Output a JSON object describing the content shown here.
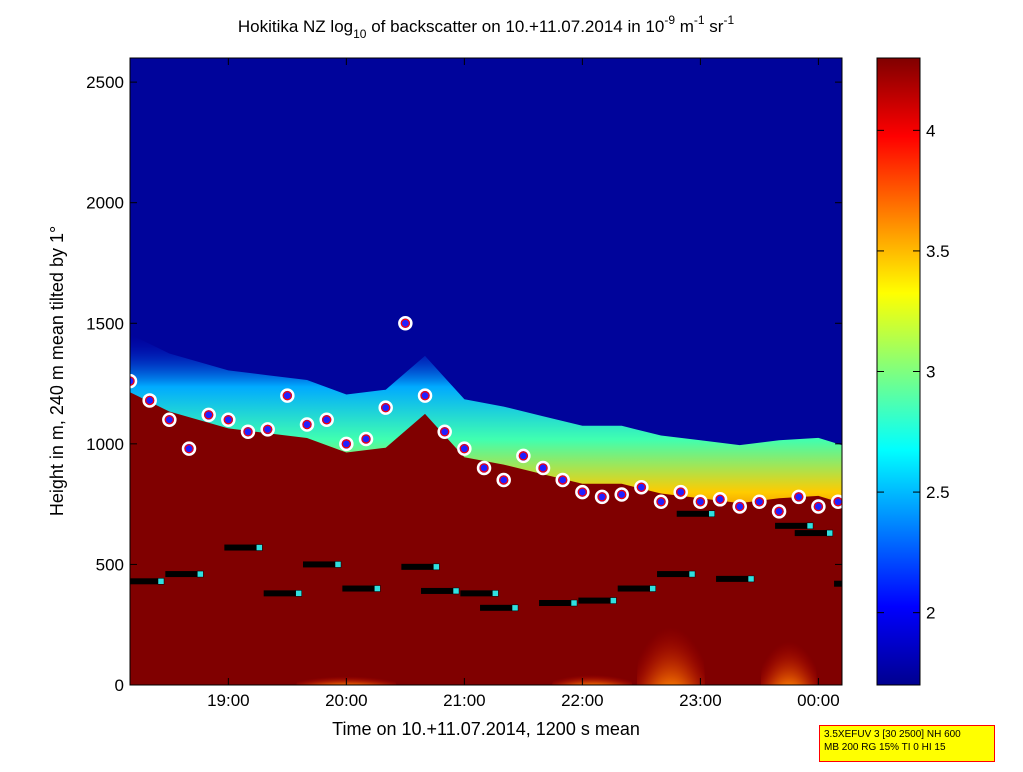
{
  "chart_data": {
    "type": "heatmap",
    "title": {
      "prefix": "Hokitika NZ log",
      "sub": "10",
      "mid": " of backscatter on 10.+11.07.2014 in 10",
      "exp1": "-9",
      "m": " m",
      "exp2": "-1",
      "sr": " sr",
      "exp3": "-1"
    },
    "xlabel": "Time on 10.+11.07.2014, 1200 s mean",
    "ylabel": "Height in m, 240 m mean tilted by 1°",
    "xlim": [
      "18:10",
      "00:12"
    ],
    "ylim": [
      0,
      2600
    ],
    "x_ticks": [
      "19:00",
      "20:00",
      "21:00",
      "22:00",
      "23:00",
      "00:00"
    ],
    "y_ticks": [
      0,
      500,
      1000,
      1500,
      2000,
      2500
    ],
    "colorbar": {
      "range": [
        1.7,
        4.3
      ],
      "ticks": [
        2,
        2.5,
        3,
        3.5,
        4
      ],
      "colormap": "jet"
    },
    "background_color": "#00008f",
    "saturated_color": "#800000",
    "aerosol_top": {
      "time": [
        "18:10",
        "18:30",
        "19:00",
        "19:20",
        "19:40",
        "20:00",
        "20:20",
        "20:40",
        "21:00",
        "21:20",
        "21:40",
        "22:00",
        "22:20",
        "22:40",
        "23:00",
        "23:20",
        "23:40",
        "00:00",
        "00:12"
      ],
      "height_m": [
        1380,
        1300,
        1230,
        1210,
        1190,
        1130,
        1150,
        1290,
        1110,
        1080,
        1040,
        1000,
        1000,
        960,
        940,
        920,
        940,
        950,
        920
      ]
    },
    "cloud_base_markers": [
      {
        "time": "18:10",
        "height_m": 430
      },
      {
        "time": "18:30",
        "height_m": 460
      },
      {
        "time": "19:00",
        "height_m": 570
      },
      {
        "time": "19:20",
        "height_m": 380
      },
      {
        "time": "19:40",
        "height_m": 500
      },
      {
        "time": "20:00",
        "height_m": 400
      },
      {
        "time": "20:30",
        "height_m": 490
      },
      {
        "time": "20:40",
        "height_m": 390
      },
      {
        "time": "21:00",
        "height_m": 380
      },
      {
        "time": "21:10",
        "height_m": 320
      },
      {
        "time": "21:40",
        "height_m": 340
      },
      {
        "time": "22:00",
        "height_m": 350
      },
      {
        "time": "22:20",
        "height_m": 400
      },
      {
        "time": "22:40",
        "height_m": 460
      },
      {
        "time": "22:50",
        "height_m": 710
      },
      {
        "time": "23:10",
        "height_m": 440
      },
      {
        "time": "23:40",
        "height_m": 660
      },
      {
        "time": "23:50",
        "height_m": 630
      },
      {
        "time": "00:10",
        "height_m": 420
      }
    ],
    "aerosol_layer_points": [
      {
        "time": "18:10",
        "height_m": 1260
      },
      {
        "time": "18:20",
        "height_m": 1180
      },
      {
        "time": "18:30",
        "height_m": 1100
      },
      {
        "time": "18:40",
        "height_m": 980
      },
      {
        "time": "18:50",
        "height_m": 1120
      },
      {
        "time": "19:00",
        "height_m": 1100
      },
      {
        "time": "19:10",
        "height_m": 1050
      },
      {
        "time": "19:20",
        "height_m": 1060
      },
      {
        "time": "19:30",
        "height_m": 1200
      },
      {
        "time": "19:40",
        "height_m": 1080
      },
      {
        "time": "19:50",
        "height_m": 1100
      },
      {
        "time": "20:00",
        "height_m": 1000
      },
      {
        "time": "20:10",
        "height_m": 1020
      },
      {
        "time": "20:20",
        "height_m": 1150
      },
      {
        "time": "20:30",
        "height_m": 1500
      },
      {
        "time": "20:40",
        "height_m": 1200
      },
      {
        "time": "20:50",
        "height_m": 1050
      },
      {
        "time": "21:00",
        "height_m": 980
      },
      {
        "time": "21:10",
        "height_m": 900
      },
      {
        "time": "21:20",
        "height_m": 850
      },
      {
        "time": "21:30",
        "height_m": 950
      },
      {
        "time": "21:40",
        "height_m": 900
      },
      {
        "time": "21:50",
        "height_m": 850
      },
      {
        "time": "22:00",
        "height_m": 800
      },
      {
        "time": "22:10",
        "height_m": 780
      },
      {
        "time": "22:20",
        "height_m": 790
      },
      {
        "time": "22:30",
        "height_m": 820
      },
      {
        "time": "22:40",
        "height_m": 760
      },
      {
        "time": "22:50",
        "height_m": 800
      },
      {
        "time": "23:00",
        "height_m": 760
      },
      {
        "time": "23:10",
        "height_m": 770
      },
      {
        "time": "23:20",
        "height_m": 740
      },
      {
        "time": "23:30",
        "height_m": 760
      },
      {
        "time": "23:40",
        "height_m": 720
      },
      {
        "time": "23:50",
        "height_m": 780
      },
      {
        "time": "00:00",
        "height_m": 740
      },
      {
        "time": "00:10",
        "height_m": 760
      }
    ],
    "grid": false,
    "legend": "none"
  },
  "infobox": {
    "line1": "3.5XEFUV 3 [30 2500] NH 600",
    "line2": "MB 200 RG 15% TI 0 HI 15"
  }
}
